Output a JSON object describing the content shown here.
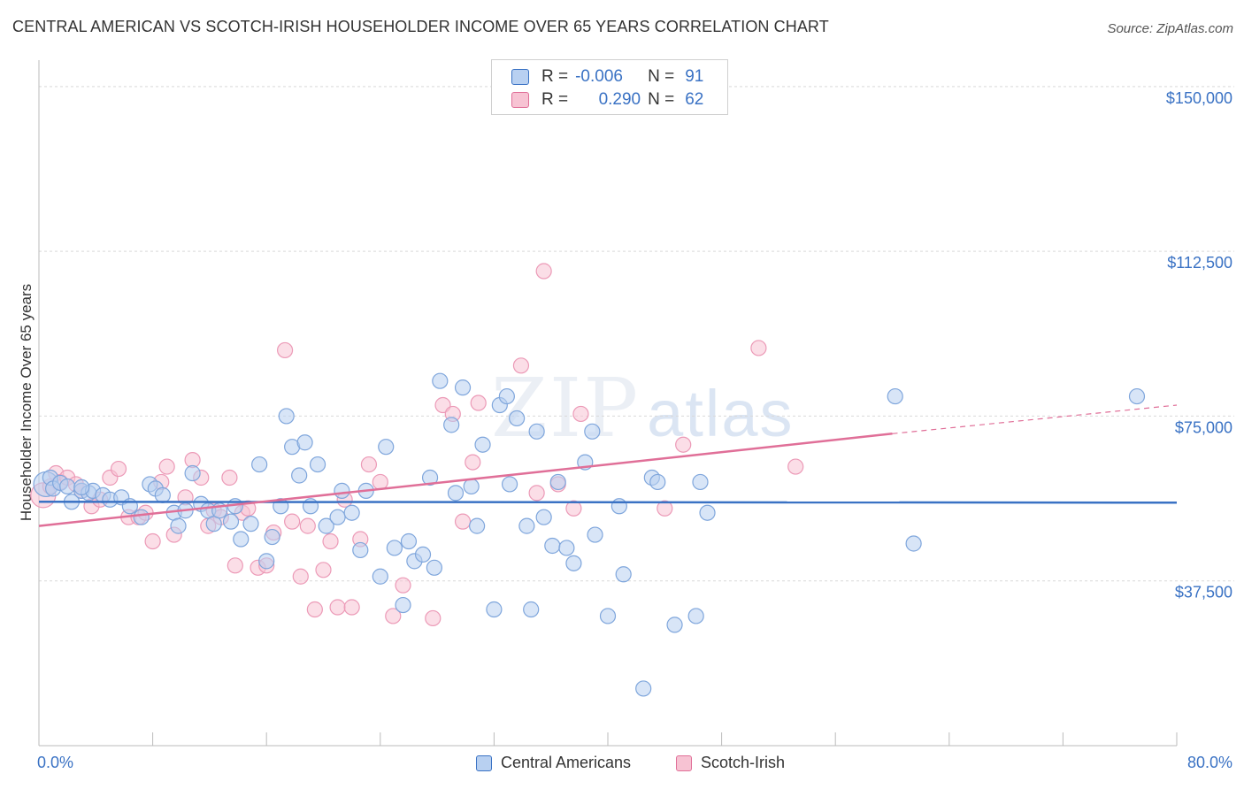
{
  "title": "CENTRAL AMERICAN VS SCOTCH-IRISH HOUSEHOLDER INCOME OVER 65 YEARS CORRELATION CHART",
  "source": "Source: ZipAtlas.com",
  "watermark": {
    "zip": "ZIP",
    "atlas": "atlas"
  },
  "colors": {
    "blue": "#3a72c4",
    "blue_fill": "#b8d0f1",
    "pink": "#e06f98",
    "pink_fill": "#f7c3d3",
    "grid": "#d9d9d9"
  },
  "legend_top": {
    "rows": [
      {
        "r_label": "R =",
        "r_value": "-0.006",
        "n_label": "N =",
        "n_value": "91"
      },
      {
        "r_label": "R =",
        "r_value": "0.290",
        "n_label": "N =",
        "n_value": "62"
      }
    ]
  },
  "legend_bottom": [
    "Central Americans",
    "Scotch-Irish"
  ],
  "chart_data": {
    "type": "scatter",
    "title": "CENTRAL AMERICAN VS SCOTCH-IRISH HOUSEHOLDER INCOME OVER 65 YEARS CORRELATION CHART",
    "xlabel": "",
    "ylabel": "Householder Income Over 65 years",
    "x_tick_labels": [
      "0.0%",
      "80.0%"
    ],
    "y_tick_labels": [
      "$150,000",
      "$112,500",
      "$75,000",
      "$37,500"
    ],
    "y_ticks": [
      150000,
      112500,
      75000,
      37500
    ],
    "xlim": [
      0,
      80
    ],
    "ylim": [
      0,
      154000
    ],
    "grid": true,
    "legend_position": "top-center",
    "series": [
      {
        "name": "Central Americans",
        "color": "#3a72c4",
        "trend": {
          "x": [
            0,
            80
          ],
          "y": [
            55500,
            55300
          ]
        },
        "points": [
          [
            0.5,
            59500
          ],
          [
            0.8,
            61000
          ],
          [
            1.0,
            58500
          ],
          [
            1.5,
            59800
          ],
          [
            2.0,
            59000
          ],
          [
            2.3,
            55500
          ],
          [
            3.0,
            58000
          ],
          [
            3.5,
            57500
          ],
          [
            3.8,
            58000
          ],
          [
            4.5,
            57000
          ],
          [
            5.0,
            56000
          ],
          [
            5.8,
            56500
          ],
          [
            6.4,
            54500
          ],
          [
            7.2,
            52000
          ],
          [
            7.8,
            59500
          ],
          [
            8.2,
            58500
          ],
          [
            8.7,
            57000
          ],
          [
            9.5,
            53000
          ],
          [
            9.8,
            50000
          ],
          [
            10.3,
            53500
          ],
          [
            10.8,
            62000
          ],
          [
            11.4,
            55000
          ],
          [
            11.9,
            53500
          ],
          [
            12.3,
            50500
          ],
          [
            12.7,
            53500
          ],
          [
            13.5,
            51000
          ],
          [
            13.8,
            54500
          ],
          [
            14.2,
            47000
          ],
          [
            14.9,
            50500
          ],
          [
            15.5,
            64000
          ],
          [
            16.0,
            42000
          ],
          [
            16.4,
            47500
          ],
          [
            17.0,
            54500
          ],
          [
            17.4,
            75000
          ],
          [
            17.8,
            68000
          ],
          [
            18.3,
            61500
          ],
          [
            18.7,
            69000
          ],
          [
            19.1,
            54500
          ],
          [
            19.6,
            64000
          ],
          [
            20.2,
            50000
          ],
          [
            21.0,
            52000
          ],
          [
            21.3,
            58000
          ],
          [
            22.0,
            53000
          ],
          [
            22.6,
            44500
          ],
          [
            23.0,
            58000
          ],
          [
            24.0,
            38500
          ],
          [
            24.4,
            68000
          ],
          [
            25.0,
            45000
          ],
          [
            25.6,
            32000
          ],
          [
            26.0,
            46500
          ],
          [
            26.4,
            42000
          ],
          [
            27.0,
            43500
          ],
          [
            27.5,
            61000
          ],
          [
            27.8,
            40500
          ],
          [
            28.2,
            83000
          ],
          [
            29.0,
            73000
          ],
          [
            29.3,
            57500
          ],
          [
            29.8,
            81500
          ],
          [
            30.4,
            59000
          ],
          [
            30.8,
            50000
          ],
          [
            31.2,
            68500
          ],
          [
            32.0,
            31000
          ],
          [
            32.4,
            77500
          ],
          [
            32.9,
            79500
          ],
          [
            33.1,
            59500
          ],
          [
            33.6,
            74500
          ],
          [
            34.3,
            50000
          ],
          [
            34.6,
            31000
          ],
          [
            35.0,
            71500
          ],
          [
            35.5,
            52000
          ],
          [
            36.1,
            45500
          ],
          [
            36.5,
            60000
          ],
          [
            37.1,
            45000
          ],
          [
            37.6,
            41500
          ],
          [
            38.4,
            64500
          ],
          [
            38.9,
            71500
          ],
          [
            39.1,
            48000
          ],
          [
            40.0,
            29500
          ],
          [
            40.8,
            54500
          ],
          [
            41.1,
            39000
          ],
          [
            43.1,
            61000
          ],
          [
            43.5,
            60000
          ],
          [
            46.5,
            60000
          ],
          [
            47.0,
            53000
          ],
          [
            44.7,
            27500
          ],
          [
            46.2,
            29500
          ],
          [
            42.5,
            13000
          ],
          [
            60.2,
            79500
          ],
          [
            61.5,
            46000
          ],
          [
            77.2,
            79500
          ],
          [
            3.0,
            58800
          ]
        ]
      },
      {
        "name": "Scotch-Irish",
        "color": "#e06f98",
        "trend": {
          "x": [
            0,
            60
          ],
          "y": [
            50000,
            71000
          ]
        },
        "trend_ext": {
          "x": [
            60,
            80
          ],
          "y": [
            71000,
            77500
          ]
        },
        "points": [
          [
            0.3,
            57000
          ],
          [
            0.8,
            59000
          ],
          [
            1.2,
            62000
          ],
          [
            1.5,
            60000
          ],
          [
            2.0,
            61000
          ],
          [
            2.6,
            59500
          ],
          [
            3.0,
            58000
          ],
          [
            3.7,
            54500
          ],
          [
            4.3,
            56000
          ],
          [
            5.0,
            61000
          ],
          [
            5.6,
            63000
          ],
          [
            6.3,
            52000
          ],
          [
            7.0,
            52000
          ],
          [
            7.5,
            53000
          ],
          [
            8.0,
            46500
          ],
          [
            8.6,
            60000
          ],
          [
            9.0,
            63500
          ],
          [
            9.5,
            48000
          ],
          [
            10.3,
            56500
          ],
          [
            10.8,
            65000
          ],
          [
            11.4,
            61000
          ],
          [
            11.9,
            50000
          ],
          [
            12.3,
            53500
          ],
          [
            12.8,
            52000
          ],
          [
            13.4,
            61000
          ],
          [
            13.8,
            41000
          ],
          [
            14.3,
            53000
          ],
          [
            14.7,
            54000
          ],
          [
            15.4,
            40500
          ],
          [
            16.0,
            41000
          ],
          [
            16.5,
            48500
          ],
          [
            17.3,
            90000
          ],
          [
            17.8,
            51000
          ],
          [
            18.4,
            38500
          ],
          [
            18.9,
            50000
          ],
          [
            19.4,
            31000
          ],
          [
            20.0,
            40000
          ],
          [
            20.5,
            46500
          ],
          [
            21.0,
            31500
          ],
          [
            21.5,
            56000
          ],
          [
            22.0,
            31500
          ],
          [
            22.6,
            47000
          ],
          [
            23.2,
            64000
          ],
          [
            24.0,
            60000
          ],
          [
            24.9,
            29500
          ],
          [
            25.6,
            36500
          ],
          [
            27.7,
            29000
          ],
          [
            28.4,
            77500
          ],
          [
            29.1,
            75500
          ],
          [
            29.8,
            51000
          ],
          [
            30.5,
            64500
          ],
          [
            30.9,
            78000
          ],
          [
            33.9,
            86500
          ],
          [
            35.5,
            108000
          ],
          [
            36.5,
            59500
          ],
          [
            37.6,
            54000
          ],
          [
            38.1,
            75500
          ],
          [
            44.0,
            54000
          ],
          [
            45.3,
            68500
          ],
          [
            50.6,
            90500
          ],
          [
            53.2,
            63500
          ],
          [
            35.0,
            57500
          ]
        ]
      }
    ]
  }
}
